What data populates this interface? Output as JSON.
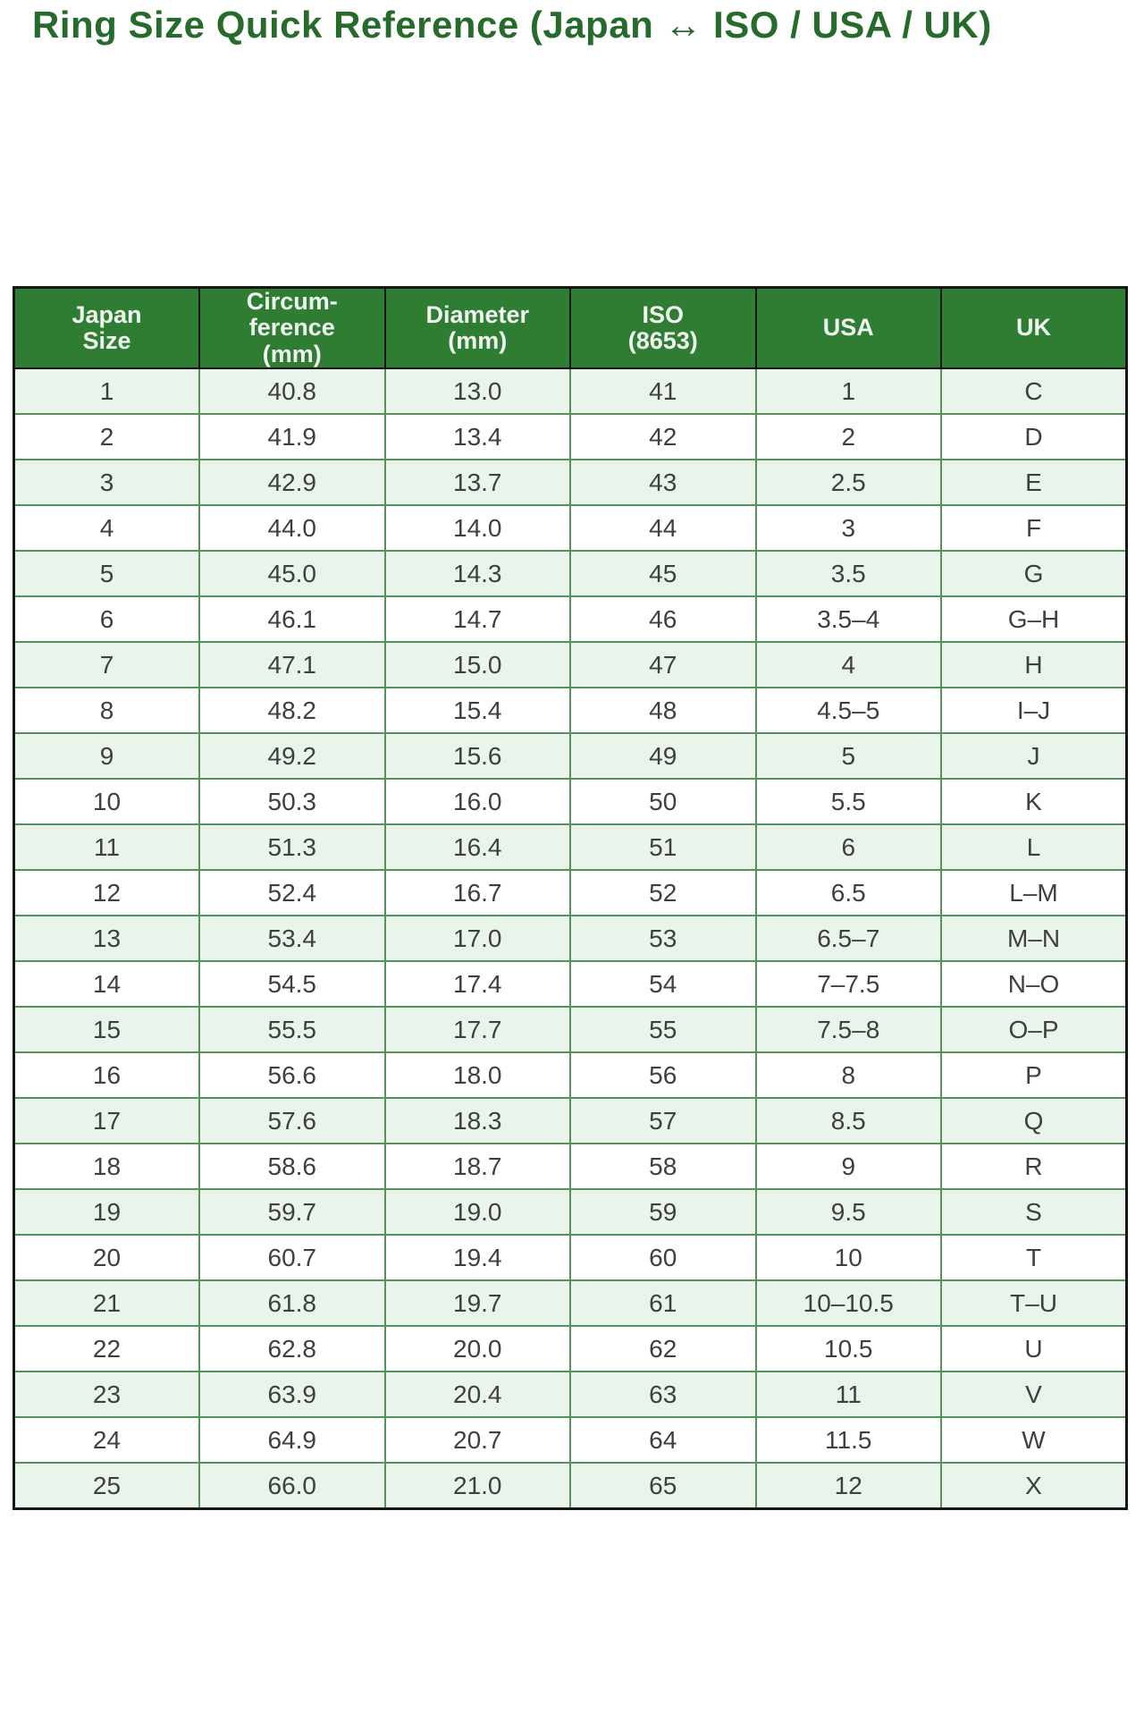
{
  "title": "Ring Size Quick Reference (Japan ↔ ISO / USA / UK)",
  "colors": {
    "title_green": "#276b2c",
    "header_bg": "#2e7d32",
    "header_text": "#f0f7f0",
    "odd_row_bg": "#e9f4ea",
    "even_row_bg": "#ffffff",
    "body_border": "#55925b",
    "outer_border": "#161616",
    "body_text": "#3f3f3f"
  },
  "table": {
    "columns": [
      "Japan\nSize",
      "Circum-\nference\n(mm)",
      "Diameter\n(mm)",
      "ISO\n(8653)",
      "USA",
      "UK"
    ],
    "rows": [
      [
        "1",
        "40.8",
        "13.0",
        "41",
        "1",
        "C"
      ],
      [
        "2",
        "41.9",
        "13.4",
        "42",
        "2",
        "D"
      ],
      [
        "3",
        "42.9",
        "13.7",
        "43",
        "2.5",
        "E"
      ],
      [
        "4",
        "44.0",
        "14.0",
        "44",
        "3",
        "F"
      ],
      [
        "5",
        "45.0",
        "14.3",
        "45",
        "3.5",
        "G"
      ],
      [
        "6",
        "46.1",
        "14.7",
        "46",
        "3.5–4",
        "G–H"
      ],
      [
        "7",
        "47.1",
        "15.0",
        "47",
        "4",
        "H"
      ],
      [
        "8",
        "48.2",
        "15.4",
        "48",
        "4.5–5",
        "I–J"
      ],
      [
        "9",
        "49.2",
        "15.6",
        "49",
        "5",
        "J"
      ],
      [
        "10",
        "50.3",
        "16.0",
        "50",
        "5.5",
        "K"
      ],
      [
        "11",
        "51.3",
        "16.4",
        "51",
        "6",
        "L"
      ],
      [
        "12",
        "52.4",
        "16.7",
        "52",
        "6.5",
        "L–M"
      ],
      [
        "13",
        "53.4",
        "17.0",
        "53",
        "6.5–7",
        "M–N"
      ],
      [
        "14",
        "54.5",
        "17.4",
        "54",
        "7–7.5",
        "N–O"
      ],
      [
        "15",
        "55.5",
        "17.7",
        "55",
        "7.5–8",
        "O–P"
      ],
      [
        "16",
        "56.6",
        "18.0",
        "56",
        "8",
        "P"
      ],
      [
        "17",
        "57.6",
        "18.3",
        "57",
        "8.5",
        "Q"
      ],
      [
        "18",
        "58.6",
        "18.7",
        "58",
        "9",
        "R"
      ],
      [
        "19",
        "59.7",
        "19.0",
        "59",
        "9.5",
        "S"
      ],
      [
        "20",
        "60.7",
        "19.4",
        "60",
        "10",
        "T"
      ],
      [
        "21",
        "61.8",
        "19.7",
        "61",
        "10–10.5",
        "T–U"
      ],
      [
        "22",
        "62.8",
        "20.0",
        "62",
        "10.5",
        "U"
      ],
      [
        "23",
        "63.9",
        "20.4",
        "63",
        "11",
        "V"
      ],
      [
        "24",
        "64.9",
        "20.7",
        "64",
        "11.5",
        "W"
      ],
      [
        "25",
        "66.0",
        "21.0",
        "65",
        "12",
        "X"
      ]
    ]
  },
  "chart_data": {
    "type": "table",
    "title": "Ring Size Quick Reference (Japan ↔ ISO / USA / UK)",
    "columns": [
      "Japan Size",
      "Circumference (mm)",
      "Diameter (mm)",
      "ISO (8653)",
      "USA",
      "UK"
    ],
    "rows": [
      [
        "1",
        "40.8",
        "13.0",
        "41",
        "1",
        "C"
      ],
      [
        "2",
        "41.9",
        "13.4",
        "42",
        "2",
        "D"
      ],
      [
        "3",
        "42.9",
        "13.7",
        "43",
        "2.5",
        "E"
      ],
      [
        "4",
        "44.0",
        "14.0",
        "44",
        "3",
        "F"
      ],
      [
        "5",
        "45.0",
        "14.3",
        "45",
        "3.5",
        "G"
      ],
      [
        "6",
        "46.1",
        "14.7",
        "46",
        "3.5–4",
        "G–H"
      ],
      [
        "7",
        "47.1",
        "15.0",
        "47",
        "4",
        "H"
      ],
      [
        "8",
        "48.2",
        "15.4",
        "48",
        "4.5–5",
        "I–J"
      ],
      [
        "9",
        "49.2",
        "15.6",
        "49",
        "5",
        "J"
      ],
      [
        "10",
        "50.3",
        "16.0",
        "50",
        "5.5",
        "K"
      ],
      [
        "11",
        "51.3",
        "16.4",
        "51",
        "6",
        "L"
      ],
      [
        "12",
        "52.4",
        "16.7",
        "52",
        "6.5",
        "L–M"
      ],
      [
        "13",
        "53.4",
        "17.0",
        "53",
        "6.5–7",
        "M–N"
      ],
      [
        "14",
        "54.5",
        "17.4",
        "54",
        "7–7.5",
        "N–O"
      ],
      [
        "15",
        "55.5",
        "17.7",
        "55",
        "7.5–8",
        "O–P"
      ],
      [
        "16",
        "56.6",
        "18.0",
        "56",
        "8",
        "P"
      ],
      [
        "17",
        "57.6",
        "18.3",
        "57",
        "8.5",
        "Q"
      ],
      [
        "18",
        "58.6",
        "18.7",
        "58",
        "9",
        "R"
      ],
      [
        "19",
        "59.7",
        "19.0",
        "59",
        "9.5",
        "S"
      ],
      [
        "20",
        "60.7",
        "19.4",
        "60",
        "10",
        "T"
      ],
      [
        "21",
        "61.8",
        "19.7",
        "61",
        "10–10.5",
        "T–U"
      ],
      [
        "22",
        "62.8",
        "20.0",
        "62",
        "10.5",
        "U"
      ],
      [
        "23",
        "63.9",
        "20.4",
        "63",
        "11",
        "V"
      ],
      [
        "24",
        "64.9",
        "20.7",
        "64",
        "11.5",
        "W"
      ],
      [
        "25",
        "66.0",
        "21.0",
        "65",
        "12",
        "X"
      ]
    ],
    "layout": {
      "header_position": "top",
      "zebra_striping": true,
      "grid": true
    }
  }
}
